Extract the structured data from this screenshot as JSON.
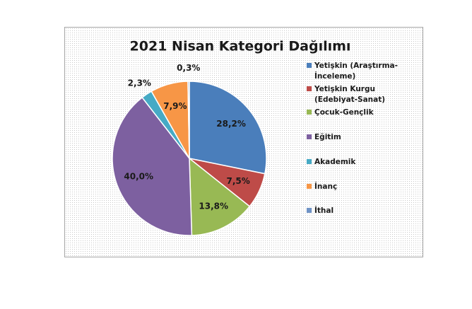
{
  "chart_data": {
    "type": "pie",
    "title": "2021 Nisan Kategori Dağılımı",
    "categories": [
      "Yetişkin (Araştırma-İnceleme)",
      "Yetişkin Kurgu (Edebiyat-Sanat)",
      "Çocuk-Gençlik",
      "Eğitim",
      "Akademik",
      "İnanç",
      "İthal"
    ],
    "values": [
      28.2,
      7.5,
      13.8,
      40.0,
      2.3,
      7.9,
      0.3
    ],
    "value_labels": [
      "28,2%",
      "7,5%",
      "13,8%",
      "40,0%",
      "2,3%",
      "7,9%",
      "0,3%"
    ],
    "colors": [
      "#4a7ebb",
      "#be4b48",
      "#98b954",
      "#7d60a0",
      "#46aac5",
      "#f79646",
      "#6f93c6"
    ]
  }
}
